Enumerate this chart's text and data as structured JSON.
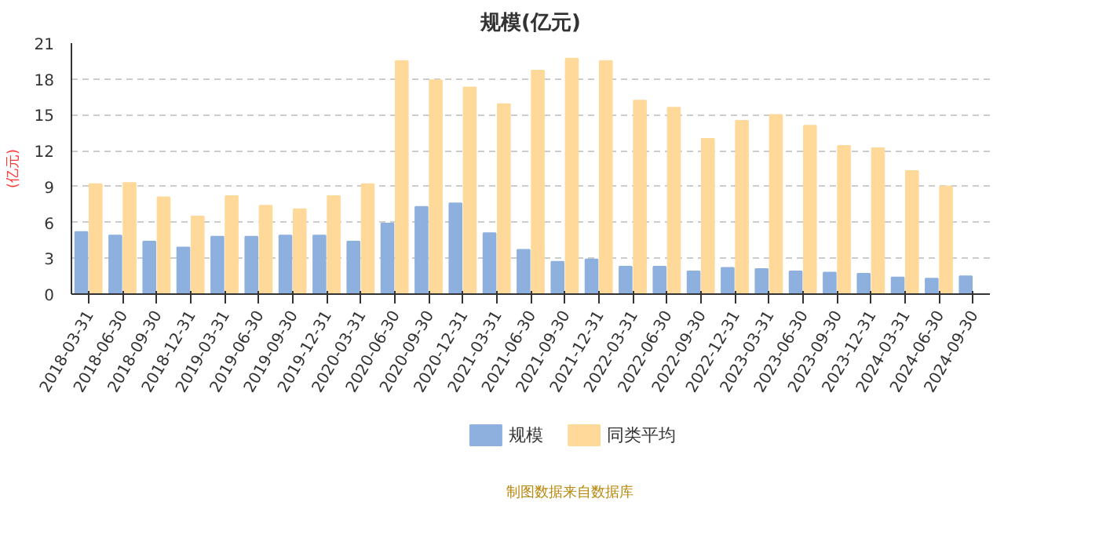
{
  "chart_data": {
    "type": "bar",
    "title": "规模(亿元)",
    "ylabel": "(亿元)",
    "categories": [
      "2018-03-31",
      "2018-06-30",
      "2018-09-30",
      "2018-12-31",
      "2019-03-31",
      "2019-06-30",
      "2019-09-30",
      "2019-12-31",
      "2020-03-31",
      "2020-06-30",
      "2020-09-30",
      "2020-12-31",
      "2021-03-31",
      "2021-06-30",
      "2021-09-30",
      "2021-12-31",
      "2022-03-31",
      "2022-06-30",
      "2022-09-30",
      "2022-12-31",
      "2023-03-31",
      "2023-06-30",
      "2023-09-30",
      "2023-12-31",
      "2024-03-31",
      "2024-06-30",
      "2024-09-30"
    ],
    "series": [
      {
        "name": "规模",
        "color": "#8eb0de",
        "values": [
          5.2,
          4.9,
          4.4,
          3.9,
          4.8,
          4.8,
          4.9,
          4.9,
          4.4,
          5.9,
          7.3,
          7.6,
          5.1,
          3.7,
          2.7,
          2.9,
          2.3,
          2.3,
          1.9,
          2.2,
          2.1,
          1.9,
          1.8,
          1.7,
          1.4,
          1.3,
          1.5
        ]
      },
      {
        "name": "同类平均",
        "color": "#ffd99a",
        "values": [
          9.2,
          9.3,
          8.1,
          6.5,
          8.2,
          7.4,
          7.1,
          8.2,
          9.2,
          19.5,
          17.9,
          17.3,
          15.9,
          18.7,
          19.7,
          19.5,
          16.2,
          15.6,
          13.0,
          14.5,
          15.0,
          14.1,
          12.4,
          12.2,
          10.3,
          9.0,
          null
        ]
      }
    ],
    "ylim": [
      0,
      21
    ],
    "yticks": [
      0,
      3,
      6,
      9,
      12,
      15,
      18,
      21
    ],
    "grid": "y",
    "legend": "bottom",
    "annotations": [
      "制图数据来自数据库"
    ]
  }
}
